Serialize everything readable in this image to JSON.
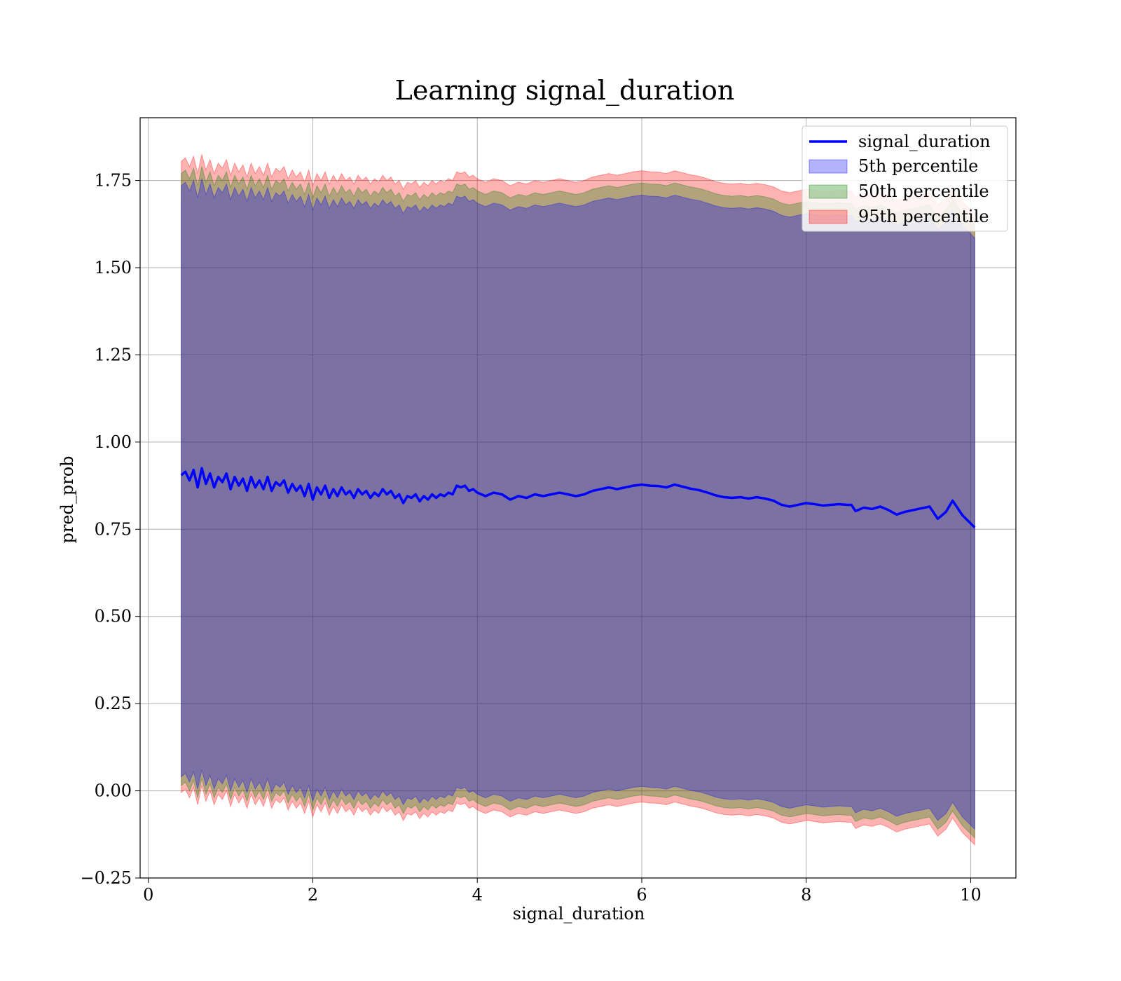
{
  "chart_data": {
    "type": "area",
    "title": "Learning signal_duration",
    "xlabel": "signal_duration",
    "ylabel": "pred_prob",
    "xlim": [
      -0.1,
      10.55
    ],
    "ylim": [
      -0.25,
      1.93
    ],
    "xticks": [
      0,
      2,
      4,
      6,
      8,
      10
    ],
    "xtick_labels": [
      "0",
      "2",
      "4",
      "6",
      "8",
      "10"
    ],
    "yticks": [
      -0.25,
      0.0,
      0.25,
      0.5,
      0.75,
      1.0,
      1.25,
      1.5,
      1.75
    ],
    "ytick_labels": [
      "−0.25",
      "0.00",
      "0.25",
      "0.50",
      "0.75",
      "1.00",
      "1.25",
      "1.50",
      "1.75"
    ],
    "grid": true,
    "legend_position": "top-right",
    "line": {
      "name": "signal_duration",
      "color": "#0000ff",
      "x": [
        0.4,
        0.45,
        0.5,
        0.55,
        0.6,
        0.65,
        0.7,
        0.75,
        0.8,
        0.85,
        0.9,
        0.95,
        1.0,
        1.05,
        1.1,
        1.15,
        1.2,
        1.25,
        1.3,
        1.35,
        1.4,
        1.45,
        1.5,
        1.55,
        1.6,
        1.65,
        1.7,
        1.75,
        1.8,
        1.85,
        1.9,
        1.95,
        2.0,
        2.05,
        2.1,
        2.15,
        2.2,
        2.25,
        2.3,
        2.35,
        2.4,
        2.45,
        2.5,
        2.55,
        2.6,
        2.65,
        2.7,
        2.75,
        2.8,
        2.85,
        2.9,
        2.95,
        3.0,
        3.05,
        3.1,
        3.15,
        3.2,
        3.25,
        3.3,
        3.35,
        3.4,
        3.45,
        3.5,
        3.55,
        3.6,
        3.65,
        3.7,
        3.75,
        3.8,
        3.85,
        3.9,
        3.95,
        4.0,
        4.1,
        4.2,
        4.3,
        4.4,
        4.5,
        4.6,
        4.7,
        4.8,
        4.9,
        5.0,
        5.1,
        5.2,
        5.3,
        5.4,
        5.5,
        5.6,
        5.7,
        5.8,
        5.9,
        6.0,
        6.1,
        6.2,
        6.3,
        6.4,
        6.5,
        6.6,
        6.7,
        6.8,
        6.9,
        7.0,
        7.1,
        7.2,
        7.3,
        7.4,
        7.5,
        7.6,
        7.7,
        7.8,
        7.9,
        8.0,
        8.1,
        8.2,
        8.3,
        8.4,
        8.5,
        8.55,
        8.6,
        8.7,
        8.8,
        8.9,
        9.0,
        9.1,
        9.2,
        9.3,
        9.4,
        9.5,
        9.6,
        9.7,
        9.78,
        9.9,
        10.05
      ],
      "y": [
        0.905,
        0.915,
        0.89,
        0.92,
        0.87,
        0.925,
        0.88,
        0.91,
        0.87,
        0.9,
        0.885,
        0.91,
        0.865,
        0.9,
        0.875,
        0.895,
        0.86,
        0.9,
        0.87,
        0.89,
        0.865,
        0.9,
        0.86,
        0.885,
        0.875,
        0.89,
        0.855,
        0.88,
        0.86,
        0.875,
        0.845,
        0.88,
        0.835,
        0.87,
        0.85,
        0.875,
        0.84,
        0.865,
        0.845,
        0.87,
        0.85,
        0.86,
        0.84,
        0.865,
        0.85,
        0.86,
        0.84,
        0.855,
        0.845,
        0.865,
        0.85,
        0.86,
        0.84,
        0.85,
        0.825,
        0.845,
        0.84,
        0.85,
        0.83,
        0.845,
        0.835,
        0.85,
        0.84,
        0.85,
        0.845,
        0.855,
        0.85,
        0.875,
        0.87,
        0.875,
        0.86,
        0.865,
        0.855,
        0.845,
        0.855,
        0.85,
        0.835,
        0.845,
        0.84,
        0.85,
        0.845,
        0.85,
        0.855,
        0.85,
        0.845,
        0.85,
        0.86,
        0.865,
        0.87,
        0.865,
        0.87,
        0.875,
        0.878,
        0.875,
        0.874,
        0.87,
        0.878,
        0.872,
        0.866,
        0.862,
        0.855,
        0.847,
        0.842,
        0.84,
        0.842,
        0.838,
        0.842,
        0.838,
        0.832,
        0.82,
        0.815,
        0.82,
        0.825,
        0.822,
        0.818,
        0.82,
        0.822,
        0.82,
        0.82,
        0.802,
        0.812,
        0.808,
        0.815,
        0.805,
        0.792,
        0.8,
        0.805,
        0.81,
        0.815,
        0.78,
        0.8,
        0.832,
        0.79,
        0.755
      ]
    },
    "series": [
      {
        "name": "5th percentile",
        "color": "#0000ff",
        "upper_offset": 0.83,
        "lower_offset": -0.865
      },
      {
        "name": "50th percentile",
        "color": "#008000",
        "upper_offset": 0.865,
        "lower_offset": -0.89
      },
      {
        "name": "95th percentile",
        "color": "#ff0000",
        "upper_offset": 0.9,
        "lower_offset": -0.91
      }
    ]
  }
}
